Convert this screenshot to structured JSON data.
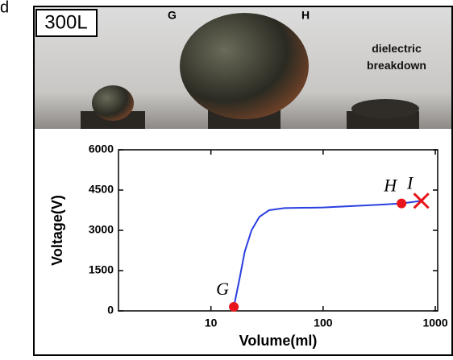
{
  "panel_letter": "d",
  "photos": {
    "panel_label": "300L",
    "labels": [
      "G",
      "H",
      "dielectric breakdown"
    ]
  },
  "chart_data": {
    "type": "line",
    "xlabel": "Volume(ml)",
    "ylabel": "Voltage(V)",
    "xscale": "log",
    "xlim": [
      1.5,
      1050
    ],
    "xticks": [
      10,
      100,
      1000
    ],
    "ylim": [
      0,
      6000
    ],
    "yticks": [
      0,
      1500,
      3000,
      4500,
      6000
    ],
    "series": [
      {
        "color": "#2a3fe0",
        "x": [
          16,
          18,
          20,
          23,
          27,
          33,
          45,
          100,
          300,
          500,
          750
        ],
        "values": [
          150,
          1200,
          2200,
          3000,
          3500,
          3750,
          3830,
          3850,
          3950,
          4000,
          4100
        ]
      }
    ],
    "points": [
      {
        "label": "G",
        "x": 16,
        "y": 150,
        "marker": "circle",
        "color": "#e8141b"
      },
      {
        "label": "H",
        "x": 500,
        "y": 4000,
        "marker": "circle",
        "color": "#e8141b"
      },
      {
        "label": "I",
        "x": 750,
        "y": 4100,
        "marker": "cross",
        "color": "#e8141b"
      }
    ]
  }
}
